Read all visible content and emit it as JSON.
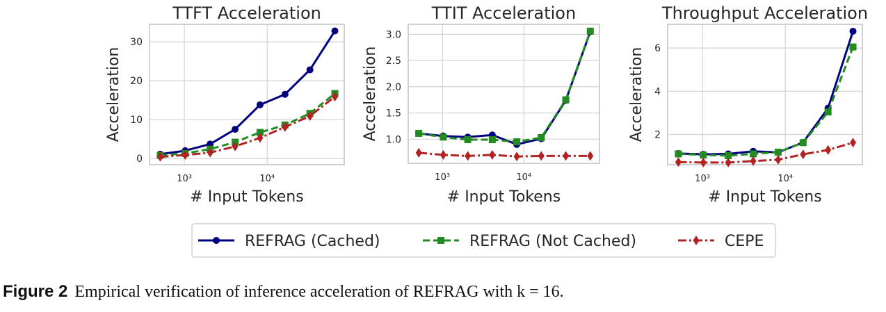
{
  "chart_data": [
    {
      "type": "line",
      "title": "TTFT Acceleration",
      "xlabel": "# Input Tokens",
      "ylabel": "Acceleration",
      "xscale": "log",
      "x": [
        512,
        1024,
        2048,
        4096,
        8192,
        16384,
        32768,
        65536
      ],
      "xticks": [
        {
          "value": 1000,
          "label": "10³"
        },
        {
          "value": 10000,
          "label": "10⁴"
        }
      ],
      "yticks": [
        0,
        10,
        20,
        30
      ],
      "ylim": [
        -1.6,
        34.5
      ],
      "grid": true,
      "series": [
        {
          "name": "REFRAG (Cached)",
          "values": [
            1.1,
            2.0,
            3.7,
            7.5,
            13.8,
            16.5,
            22.8,
            32.8
          ]
        },
        {
          "name": "REFRAG (Not Cached)",
          "values": [
            0.8,
            1.3,
            2.4,
            4.2,
            6.7,
            8.6,
            11.6,
            16.7
          ]
        },
        {
          "name": "CEPE",
          "values": [
            0.4,
            0.9,
            1.5,
            3.1,
            5.3,
            8.1,
            10.9,
            15.9
          ]
        }
      ]
    },
    {
      "type": "line",
      "title": "TTIT Acceleration",
      "xlabel": "# Input Tokens",
      "ylabel": "Acceleration",
      "xscale": "log",
      "x": [
        512,
        1024,
        2048,
        4096,
        8192,
        16384,
        32768,
        65536
      ],
      "xticks": [
        {
          "value": 1000,
          "label": "10³"
        },
        {
          "value": 10000,
          "label": "10⁴"
        }
      ],
      "yticks": [
        1.0,
        1.5,
        2.0,
        2.5,
        3.0
      ],
      "ylim": [
        0.54,
        3.19
      ],
      "grid": true,
      "series": [
        {
          "name": "REFRAG (Cached)",
          "values": [
            1.11,
            1.06,
            1.04,
            1.08,
            0.9,
            1.01,
            1.74,
            3.05
          ]
        },
        {
          "name": "REFRAG (Not Cached)",
          "values": [
            1.11,
            1.04,
            0.99,
            0.99,
            0.95,
            1.03,
            1.75,
            3.06
          ]
        },
        {
          "name": "CEPE",
          "values": [
            0.74,
            0.7,
            0.68,
            0.7,
            0.67,
            0.68,
            0.68,
            0.68
          ]
        }
      ]
    },
    {
      "type": "line",
      "title": "Throughput Acceleration",
      "xlabel": "# Input Tokens",
      "ylabel": "Acceleration",
      "xscale": "log",
      "x": [
        512,
        1024,
        2048,
        4096,
        8192,
        16384,
        32768,
        65536
      ],
      "xticks": [
        {
          "value": 1000,
          "label": "10³"
        },
        {
          "value": 10000,
          "label": "10⁴"
        }
      ],
      "yticks": [
        2,
        4,
        6
      ],
      "ylim": [
        0.6,
        7.1
      ],
      "grid": true,
      "series": [
        {
          "name": "REFRAG (Cached)",
          "values": [
            1.12,
            1.08,
            1.1,
            1.22,
            1.17,
            1.63,
            3.22,
            6.78
          ]
        },
        {
          "name": "REFRAG (Not Cached)",
          "values": [
            1.1,
            1.05,
            1.02,
            1.1,
            1.18,
            1.62,
            3.04,
            6.05
          ]
        },
        {
          "name": "CEPE",
          "values": [
            0.72,
            0.7,
            0.7,
            0.77,
            0.83,
            1.08,
            1.28,
            1.62
          ]
        }
      ]
    }
  ],
  "legend": {
    "placement": "bottom-center",
    "entries": [
      {
        "label": "REFRAG (Cached)",
        "color": "#000080",
        "marker": "circle",
        "line": "solid"
      },
      {
        "label": "REFRAG (Not Cached)",
        "color": "#228B22",
        "marker": "square",
        "line": "dashed"
      },
      {
        "label": "CEPE",
        "color": "#B22222",
        "marker": "diamond",
        "line": "dashdot"
      }
    ]
  },
  "caption": {
    "label": "Figure 2",
    "text": "Empirical verification of inference acceleration of REFRAG with k = 16."
  }
}
